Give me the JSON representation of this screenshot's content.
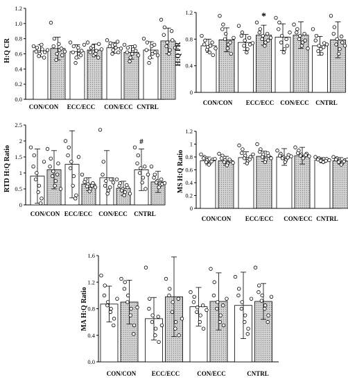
{
  "chart_data": [
    {
      "type": "bar",
      "ylabel": "H:Q CR",
      "ylim": [
        0,
        1.2
      ],
      "yticks": [
        "0.0",
        "0.2",
        "0.4",
        "0.6",
        "0.8",
        "1.0",
        "1.2"
      ],
      "categories": [
        "CON/CON",
        "ECC/ECC",
        "CON/ECC",
        "CNTRL"
      ],
      "series": [
        {
          "fill": "#ffffff",
          "values": [
            0.64,
            0.63,
            0.68,
            0.65
          ],
          "errors": [
            0.08,
            0.09,
            0.07,
            0.11
          ]
        },
        {
          "fill": "#d8d8d8",
          "values": [
            0.67,
            0.65,
            0.62,
            0.77
          ],
          "errors": [
            0.15,
            0.08,
            0.09,
            0.17
          ]
        }
      ],
      "points": [
        [
          [
            0.7,
            0.68,
            0.63,
            0.6,
            0.57,
            0.66,
            0.72,
            0.62,
            0.55,
            0.65
          ],
          [
            1.01,
            0.8,
            0.7,
            0.6,
            0.52,
            0.65,
            0.73,
            0.58,
            0.67,
            0.63
          ]
        ],
        [
          [
            0.75,
            0.7,
            0.62,
            0.55,
            0.48,
            0.6,
            0.68,
            0.64,
            0.58,
            0.72
          ],
          [
            0.75,
            0.68,
            0.62,
            0.58,
            0.7,
            0.64,
            0.6,
            0.73,
            0.55,
            0.66
          ]
        ],
        [
          [
            0.78,
            0.74,
            0.7,
            0.65,
            0.6,
            0.68,
            0.72,
            0.62,
            0.76,
            0.67
          ],
          [
            0.72,
            0.68,
            0.62,
            0.55,
            0.5,
            0.66,
            0.6,
            0.64,
            0.7,
            0.58
          ]
        ],
        [
          [
            0.8,
            0.75,
            0.65,
            0.55,
            0.48,
            0.6,
            0.7,
            0.62,
            0.72,
            0.58
          ],
          [
            1.05,
            0.95,
            0.85,
            0.75,
            0.7,
            0.65,
            0.6,
            0.78,
            0.9,
            0.68
          ]
        ]
      ],
      "annotations": []
    },
    {
      "type": "bar",
      "ylabel": "H:Q FR",
      "ylim": [
        0,
        1.2
      ],
      "yticks": [
        "0",
        "0.4",
        "0.8",
        "1.2"
      ],
      "categories": [
        "CON/CON",
        "ECC/ECC",
        "CON/ECC",
        "CNTRL"
      ],
      "series": [
        {
          "fill": "#ffffff",
          "values": [
            0.7,
            0.75,
            0.83,
            0.7
          ],
          "errors": [
            0.1,
            0.12,
            0.2,
            0.14
          ]
        },
        {
          "fill": "#d8d8d8",
          "values": [
            0.79,
            0.86,
            0.86,
            0.79
          ],
          "errors": [
            0.18,
            0.15,
            0.2,
            0.27
          ]
        }
      ],
      "points": [
        [
          [
            0.85,
            0.78,
            0.72,
            0.68,
            0.64,
            0.7,
            0.6,
            0.56,
            0.75,
            0.66
          ],
          [
            1.15,
            1.02,
            0.95,
            0.88,
            0.8,
            0.72,
            0.66,
            0.58,
            0.75,
            0.82
          ]
        ],
        [
          [
            1.0,
            0.9,
            0.85,
            0.78,
            0.7,
            0.65,
            0.6,
            0.72,
            0.82,
            0.74
          ],
          [
            1.05,
            0.95,
            0.9,
            0.85,
            0.8,
            0.75,
            0.7,
            0.78,
            0.88,
            0.82
          ]
        ],
        [
          [
            1.12,
            1.05,
            0.95,
            0.85,
            0.75,
            0.65,
            0.6,
            0.7,
            0.8,
            0.9
          ],
          [
            1.02,
            0.95,
            0.9,
            0.85,
            0.8,
            0.75,
            0.7,
            0.78,
            0.88,
            0.66
          ]
        ],
        [
          [
            0.95,
            0.85,
            0.78,
            0.7,
            0.62,
            0.58,
            0.65,
            0.74,
            0.68,
            0.72
          ],
          [
            1.15,
            0.98,
            0.88,
            0.8,
            0.72,
            0.65,
            0.58,
            0.75,
            0.84,
            0.7
          ]
        ]
      ],
      "annotations": [
        {
          "text": "*",
          "category": 1,
          "series": 1
        }
      ]
    },
    {
      "type": "bar",
      "ylabel": "RTD H:Q Ratio",
      "ylim": [
        0,
        2.5
      ],
      "yticks": [
        "0",
        "0.5",
        "1",
        "1.5",
        "2",
        "2.5"
      ],
      "categories": [
        "CON/CON",
        "ECC/ECC",
        "CON/ECC",
        "CNTRL"
      ],
      "series": [
        {
          "fill": "#ffffff",
          "values": [
            0.9,
            1.27,
            0.85,
            1.1
          ],
          "errors": [
            0.85,
            1.05,
            0.85,
            0.65
          ]
        },
        {
          "fill": "#d8d8d8",
          "values": [
            1.1,
            0.65,
            0.52,
            0.72
          ],
          "errors": [
            0.6,
            0.2,
            0.22,
            0.33
          ]
        }
      ],
      "points": [
        [
          [
            1.8,
            1.55,
            1.2,
            1.0,
            0.8,
            0.6,
            0.4,
            0.2,
            0.05,
            1.35
          ],
          [
            1.75,
            1.45,
            1.2,
            1.05,
            0.9,
            0.75,
            0.6,
            1.3,
            0.95,
            0.5
          ]
        ],
        [
          [
            2.0,
            1.8,
            1.55,
            1.35,
            1.15,
            0.9,
            0.6,
            0.3,
            0.2,
            1.5
          ],
          [
            0.95,
            0.8,
            0.72,
            0.65,
            0.58,
            0.5,
            0.42,
            0.68,
            0.6,
            0.55
          ]
        ],
        [
          [
            2.35,
            1.35,
            0.95,
            0.75,
            0.6,
            0.45,
            0.35,
            0.8,
            0.55,
            0.7
          ],
          [
            0.8,
            0.68,
            0.6,
            0.5,
            0.45,
            0.4,
            0.3,
            0.55,
            0.62,
            0.35
          ]
        ],
        [
          [
            1.8,
            1.55,
            1.3,
            1.15,
            1.0,
            0.85,
            0.7,
            0.5,
            1.2,
            0.95
          ],
          [
            1.2,
            0.95,
            0.85,
            0.75,
            0.7,
            0.6,
            0.55,
            0.65,
            0.8,
            0.68
          ]
        ]
      ],
      "annotations": [
        {
          "text": "#",
          "category": 3,
          "series": 0
        }
      ]
    },
    {
      "type": "bar",
      "ylabel": "MS H:Q Ratio",
      "ylim": [
        0,
        1.2
      ],
      "yticks": [
        "0",
        "0.2",
        "0.4",
        "0.6",
        "0.8",
        "1",
        "1.2"
      ],
      "categories": [
        "CON/CON",
        "ECC/ECC",
        "CON/ECC",
        "CNTRL"
      ],
      "series": [
        {
          "fill": "#ffffff",
          "values": [
            0.74,
            0.79,
            0.8,
            0.75
          ],
          "errors": [
            0.06,
            0.09,
            0.13,
            0.04
          ]
        },
        {
          "fill": "#d8d8d8",
          "values": [
            0.74,
            0.81,
            0.82,
            0.74
          ],
          "errors": [
            0.07,
            0.08,
            0.13,
            0.05
          ]
        }
      ],
      "points": [
        [
          [
            0.84,
            0.8,
            0.78,
            0.75,
            0.72,
            0.7,
            0.68,
            0.76,
            0.73,
            0.77
          ],
          [
            0.85,
            0.82,
            0.78,
            0.75,
            0.72,
            0.7,
            0.67,
            0.74,
            0.76,
            0.71
          ]
        ],
        [
          [
            0.98,
            0.92,
            0.86,
            0.82,
            0.78,
            0.74,
            0.7,
            0.8,
            0.76,
            0.84
          ],
          [
            1.0,
            0.92,
            0.88,
            0.84,
            0.8,
            0.76,
            0.72,
            0.82,
            0.86,
            0.78
          ]
        ],
        [
          [
            0.9,
            0.85,
            0.82,
            0.8,
            0.78,
            0.75,
            0.72,
            0.83,
            0.79,
            0.81
          ],
          [
            0.95,
            0.9,
            0.86,
            0.84,
            0.82,
            0.8,
            0.78,
            0.85,
            0.83,
            0.81
          ]
        ],
        [
          [
            0.8,
            0.78,
            0.76,
            0.75,
            0.74,
            0.73,
            0.72,
            0.77,
            0.74,
            0.75
          ],
          [
            0.8,
            0.78,
            0.76,
            0.74,
            0.72,
            0.7,
            0.68,
            0.75,
            0.73,
            0.76
          ]
        ]
      ],
      "annotations": []
    },
    {
      "type": "bar",
      "ylabel": "MA H:Q Ratio",
      "ylim": [
        0,
        1.6
      ],
      "yticks": [
        "0.0",
        "0.4",
        "0.8",
        "1.2",
        "1.6"
      ],
      "categories": [
        "CON/CON",
        "ECC/ECC",
        "CON/ECC",
        "CNTRL"
      ],
      "series": [
        {
          "fill": "#ffffff",
          "values": [
            0.87,
            0.65,
            0.83,
            0.85
          ],
          "errors": [
            0.27,
            0.32,
            0.29,
            0.5
          ]
        },
        {
          "fill": "#d8d8d8",
          "values": [
            0.9,
            0.98,
            0.91,
            0.91
          ],
          "errors": [
            0.33,
            0.6,
            0.43,
            0.27
          ]
        }
      ],
      "points": [
        [
          [
            1.3,
            1.15,
            1.0,
            0.9,
            0.85,
            0.8,
            0.75,
            0.65,
            0.55,
            0.95
          ],
          [
            1.25,
            1.2,
            1.1,
            1.0,
            0.9,
            0.8,
            0.7,
            0.55,
            0.42,
            0.82
          ]
        ],
        [
          [
            1.42,
            0.95,
            0.8,
            0.7,
            0.6,
            0.5,
            0.4,
            0.3,
            0.68,
            0.55
          ],
          [
            1.25,
            1.1,
            1.0,
            0.9,
            0.75,
            0.6,
            0.5,
            0.4,
            0.95,
            0.65
          ]
        ],
        [
          [
            1.05,
            0.98,
            0.9,
            0.82,
            0.75,
            0.7,
            0.6,
            0.5,
            0.85,
            0.78
          ],
          [
            1.4,
            1.2,
            1.0,
            0.9,
            0.8,
            0.7,
            0.6,
            0.55,
            0.85,
            0.95
          ]
        ],
        [
          [
            1.28,
            1.1,
            1.0,
            0.9,
            0.8,
            0.7,
            0.6,
            0.5,
            0.42,
            0.95
          ],
          [
            1.42,
            1.15,
            1.05,
            1.0,
            0.92,
            0.85,
            0.8,
            0.7,
            0.6,
            0.98
          ]
        ]
      ],
      "annotations": []
    }
  ]
}
